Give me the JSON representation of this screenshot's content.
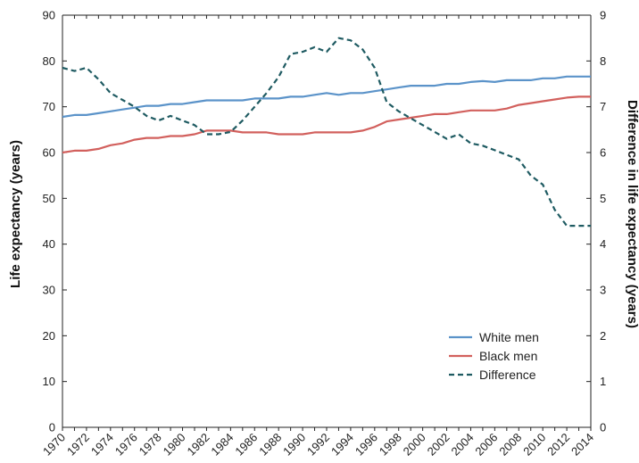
{
  "chart_data": {
    "type": "line",
    "title": "",
    "xlabel": "",
    "ylabel_left": "Life expectancy (years)",
    "ylabel_right": "Difference in life expectancy (years)",
    "xlim": [
      1970,
      2014
    ],
    "ylim_left": [
      0,
      90
    ],
    "ylim_right": [
      0,
      9
    ],
    "x_ticks": [
      "1970",
      "1972",
      "1974",
      "1976",
      "1978",
      "1980",
      "1982",
      "1984",
      "1986",
      "1988",
      "1990",
      "1992",
      "1994",
      "1996",
      "1998",
      "2000",
      "2002",
      "2004",
      "2006",
      "2008",
      "2010",
      "2012",
      "2014"
    ],
    "y_ticks_left": [
      "0",
      "10",
      "20",
      "30",
      "40",
      "50",
      "60",
      "70",
      "80",
      "90"
    ],
    "y_ticks_right": [
      "0",
      "1",
      "2",
      "3",
      "4",
      "5",
      "6",
      "7",
      "8",
      "9"
    ],
    "grid": false,
    "legend_position": "lower-right",
    "x": [
      1970,
      1971,
      1972,
      1973,
      1974,
      1975,
      1976,
      1977,
      1978,
      1979,
      1980,
      1981,
      1982,
      1983,
      1984,
      1985,
      1986,
      1987,
      1988,
      1989,
      1990,
      1991,
      1992,
      1993,
      1994,
      1995,
      1996,
      1997,
      1998,
      1999,
      2000,
      2001,
      2002,
      2003,
      2004,
      2005,
      2006,
      2007,
      2008,
      2009,
      2010,
      2011,
      2012,
      2013,
      2014
    ],
    "series": [
      {
        "name": "White men",
        "axis": "left",
        "color": "#5b93c9",
        "dash": "solid",
        "values": [
          67.8,
          68.2,
          68.2,
          68.6,
          69.0,
          69.4,
          69.8,
          70.2,
          70.2,
          70.6,
          70.6,
          71.0,
          71.4,
          71.4,
          71.4,
          71.4,
          71.8,
          71.8,
          71.8,
          72.2,
          72.2,
          72.6,
          73.0,
          72.6,
          73.0,
          73.0,
          73.4,
          73.8,
          74.2,
          74.6,
          74.6,
          74.6,
          75.0,
          75.0,
          75.4,
          75.6,
          75.4,
          75.8,
          75.8,
          75.8,
          76.2,
          76.2,
          76.6,
          76.6,
          76.6
        ]
      },
      {
        "name": "Black men",
        "axis": "left",
        "color": "#d2605d",
        "dash": "solid",
        "values": [
          60.0,
          60.4,
          60.4,
          60.8,
          61.6,
          62.0,
          62.8,
          63.2,
          63.2,
          63.6,
          63.6,
          64.0,
          64.8,
          64.8,
          64.8,
          64.4,
          64.4,
          64.4,
          64.0,
          64.0,
          64.0,
          64.4,
          64.4,
          64.4,
          64.4,
          64.8,
          65.6,
          66.8,
          67.2,
          67.6,
          68.0,
          68.4,
          68.4,
          68.8,
          69.2,
          69.2,
          69.2,
          69.6,
          70.4,
          70.8,
          71.2,
          71.6,
          72.0,
          72.2,
          72.2
        ]
      },
      {
        "name": "Difference",
        "axis": "right",
        "color": "#1f5b62",
        "dash": "dashed",
        "values": [
          7.85,
          7.78,
          7.85,
          7.6,
          7.3,
          7.15,
          7.0,
          6.8,
          6.7,
          6.8,
          6.7,
          6.6,
          6.4,
          6.4,
          6.45,
          6.7,
          7.0,
          7.3,
          7.65,
          8.15,
          8.2,
          8.3,
          8.2,
          8.5,
          8.45,
          8.25,
          7.85,
          7.1,
          6.9,
          6.75,
          6.6,
          6.45,
          6.3,
          6.4,
          6.2,
          6.15,
          6.05,
          5.95,
          5.85,
          5.5,
          5.3,
          4.75,
          4.4,
          4.4,
          4.4
        ]
      }
    ]
  }
}
